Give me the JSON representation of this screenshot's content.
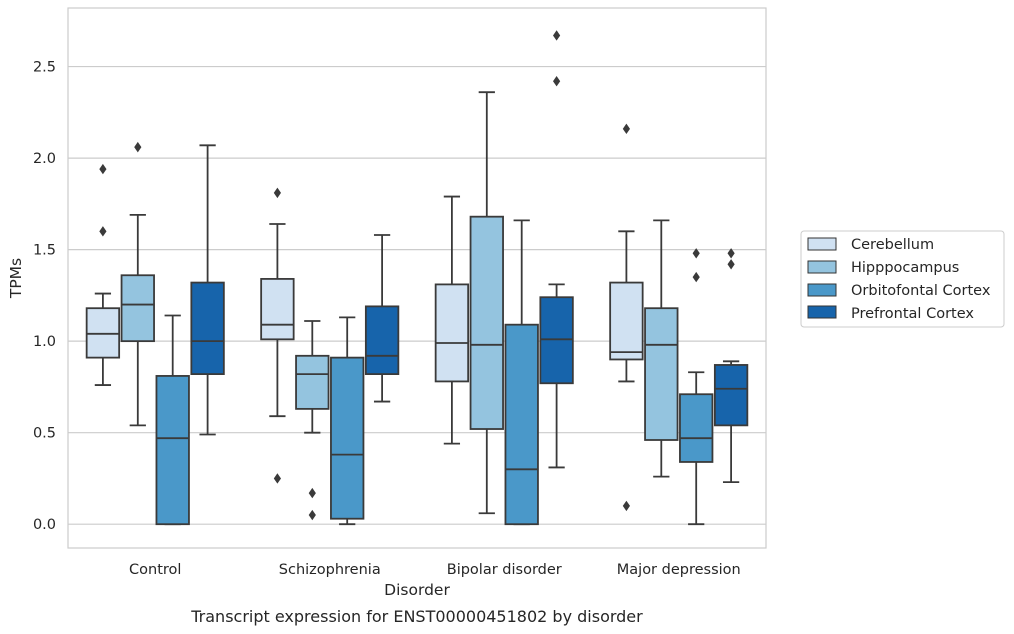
{
  "chart_data": {
    "type": "box",
    "caption": "Transcript expression for ENST00000451802 by disorder",
    "xlabel": "Disorder",
    "ylabel": "TPMs",
    "ylim": [
      -0.13,
      2.82
    ],
    "yticks": [
      0.0,
      0.5,
      1.0,
      1.5,
      2.0,
      2.5
    ],
    "ytick_labels": [
      "0.0",
      "0.5",
      "1.0",
      "1.5",
      "2.0",
      "2.5"
    ],
    "grid": "horizontal",
    "legend_placement": "right, outside plot",
    "categories": [
      "Control",
      "Schizophrenia",
      "Bipolar disorder",
      "Major depression"
    ],
    "series": [
      {
        "name": "Cerebellum",
        "color": "#d0e1f2",
        "boxes": [
          {
            "q1": 0.91,
            "median": 1.04,
            "q3": 1.18,
            "whisker_low": 0.76,
            "whisker_high": 1.26,
            "outliers": [
              1.6,
              1.94
            ]
          },
          {
            "q1": 1.01,
            "median": 1.09,
            "q3": 1.34,
            "whisker_low": 0.59,
            "whisker_high": 1.64,
            "outliers": [
              0.25,
              1.81
            ]
          },
          {
            "q1": 0.78,
            "median": 0.99,
            "q3": 1.31,
            "whisker_low": 0.44,
            "whisker_high": 1.79,
            "outliers": []
          },
          {
            "q1": 0.9,
            "median": 0.94,
            "q3": 1.32,
            "whisker_low": 0.78,
            "whisker_high": 1.6,
            "outliers": [
              0.1,
              2.16
            ]
          }
        ]
      },
      {
        "name": "Hipppocampus",
        "color": "#94c4df",
        "boxes": [
          {
            "q1": 1.0,
            "median": 1.2,
            "q3": 1.36,
            "whisker_low": 0.54,
            "whisker_high": 1.69,
            "outliers": [
              2.06
            ]
          },
          {
            "q1": 0.63,
            "median": 0.82,
            "q3": 0.92,
            "whisker_low": 0.5,
            "whisker_high": 1.11,
            "outliers": [
              0.05,
              0.17
            ]
          },
          {
            "q1": 0.52,
            "median": 0.98,
            "q3": 1.68,
            "whisker_low": 0.06,
            "whisker_high": 2.36,
            "outliers": []
          },
          {
            "q1": 0.46,
            "median": 0.98,
            "q3": 1.18,
            "whisker_low": 0.26,
            "whisker_high": 1.66,
            "outliers": []
          }
        ]
      },
      {
        "name": "Orbitofontal Cortex",
        "color": "#4a98c9",
        "boxes": [
          {
            "q1": 0.0,
            "median": 0.47,
            "q3": 0.81,
            "whisker_low": 0.0,
            "whisker_high": 1.14,
            "outliers": []
          },
          {
            "q1": 0.03,
            "median": 0.38,
            "q3": 0.91,
            "whisker_low": 0.0,
            "whisker_high": 1.13,
            "outliers": []
          },
          {
            "q1": 0.0,
            "median": 0.3,
            "q3": 1.09,
            "whisker_low": 0.0,
            "whisker_high": 1.66,
            "outliers": []
          },
          {
            "q1": 0.34,
            "median": 0.47,
            "q3": 0.71,
            "whisker_low": 0.0,
            "whisker_high": 0.83,
            "outliers": [
              1.35,
              1.48
            ]
          }
        ]
      },
      {
        "name": "Prefrontal Cortex",
        "color": "#1764ab",
        "boxes": [
          {
            "q1": 0.82,
            "median": 1.0,
            "q3": 1.32,
            "whisker_low": 0.49,
            "whisker_high": 2.07,
            "outliers": []
          },
          {
            "q1": 0.82,
            "median": 0.92,
            "q3": 1.19,
            "whisker_low": 0.67,
            "whisker_high": 1.58,
            "outliers": []
          },
          {
            "q1": 0.77,
            "median": 1.01,
            "q3": 1.24,
            "whisker_low": 0.31,
            "whisker_high": 1.31,
            "outliers": [
              2.42,
              2.67
            ]
          },
          {
            "q1": 0.54,
            "median": 0.74,
            "q3": 0.87,
            "whisker_low": 0.23,
            "whisker_high": 0.89,
            "outliers": [
              1.42,
              1.48
            ]
          }
        ]
      }
    ]
  }
}
